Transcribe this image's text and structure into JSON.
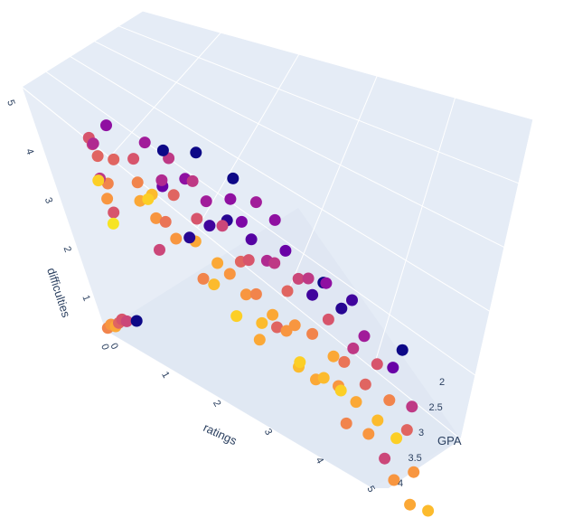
{
  "chart_data": {
    "type": "scatter3d",
    "title": "",
    "x_axis": {
      "title": "ratings",
      "ticks": [
        "0",
        "1",
        "2",
        "3",
        "4",
        "5"
      ],
      "range": [
        0,
        5
      ]
    },
    "y_axis": {
      "title": "GPA",
      "ticks": [
        "2",
        "2.5",
        "3",
        "3.5",
        "4"
      ],
      "range": [
        2,
        4
      ]
    },
    "z_axis": {
      "title": "difficulties",
      "ticks": [
        "0",
        "1",
        "2",
        "3",
        "4",
        "5"
      ],
      "range": [
        0,
        5
      ]
    },
    "colorscale": [
      "#0d0887",
      "#46039f",
      "#7201a8",
      "#9c179e",
      "#bd3786",
      "#d8576b",
      "#ed7953",
      "#fb9f3a",
      "#fdca26",
      "#f0f921"
    ],
    "background_color": "#e5ecf6",
    "grid_color": "#ffffff",
    "points": [
      {
        "r": 0.9,
        "d": 4.7,
        "g": 2.6,
        "c": 0.55
      },
      {
        "r": 0.9,
        "d": 4.5,
        "g": 2.5,
        "c": 0.5
      },
      {
        "r": 0.9,
        "d": 4.2,
        "g": 2.4,
        "c": 0.6
      },
      {
        "r": 0.9,
        "d": 4.0,
        "g": 2.7,
        "c": 0.45
      },
      {
        "r": 0.9,
        "d": 3.6,
        "g": 2.3,
        "c": 0.7
      },
      {
        "r": 0.9,
        "d": 3.2,
        "g": 2.5,
        "c": 0.55
      },
      {
        "r": 1.0,
        "d": 4.8,
        "g": 2.8,
        "c": 0.4
      },
      {
        "r": 1.0,
        "d": 3.9,
        "g": 3.0,
        "c": 0.75
      },
      {
        "r": 1.0,
        "d": 4.4,
        "g": 3.2,
        "c": 0.9
      },
      {
        "r": 1.0,
        "d": 3.5,
        "g": 3.1,
        "c": 0.95
      },
      {
        "r": 1.1,
        "d": 4.1,
        "g": 2.2,
        "c": 0.6
      },
      {
        "r": 1.1,
        "d": 4.6,
        "g": 2.0,
        "c": 0.3
      },
      {
        "r": 1.5,
        "d": 4.5,
        "g": 2.4,
        "c": 0.55
      },
      {
        "r": 1.5,
        "d": 4.2,
        "g": 2.6,
        "c": 0.7
      },
      {
        "r": 1.5,
        "d": 4.0,
        "g": 2.8,
        "c": 0.8
      },
      {
        "r": 1.6,
        "d": 3.8,
        "g": 2.3,
        "c": 0.85
      },
      {
        "r": 1.6,
        "d": 3.5,
        "g": 2.5,
        "c": 0.75
      },
      {
        "r": 1.6,
        "d": 3.2,
        "g": 2.9,
        "c": 0.5
      },
      {
        "r": 1.7,
        "d": 4.7,
        "g": 2.1,
        "c": 0.35
      },
      {
        "r": 1.7,
        "d": 4.3,
        "g": 3.0,
        "c": 0.9
      },
      {
        "r": 1.8,
        "d": 4.0,
        "g": 2.2,
        "c": 0.2
      },
      {
        "r": 1.8,
        "d": 3.7,
        "g": 2.7,
        "c": 0.65
      },
      {
        "r": 1.9,
        "d": 4.4,
        "g": 2.5,
        "c": 0.4
      },
      {
        "r": 2.0,
        "d": 4.8,
        "g": 2.2,
        "c": 0.0
      },
      {
        "r": 2.0,
        "d": 4.5,
        "g": 2.0,
        "c": 0.45
      },
      {
        "r": 2.0,
        "d": 4.1,
        "g": 2.4,
        "c": 0.6
      },
      {
        "r": 2.0,
        "d": 3.8,
        "g": 3.1,
        "c": 0.75
      },
      {
        "r": 2.1,
        "d": 3.5,
        "g": 2.6,
        "c": 0.05
      },
      {
        "r": 2.1,
        "d": 3.2,
        "g": 2.3,
        "c": 0.8
      },
      {
        "r": 2.2,
        "d": 3.0,
        "g": 2.9,
        "c": 0.7
      },
      {
        "r": 2.2,
        "d": 4.3,
        "g": 2.1,
        "c": 0.3
      },
      {
        "r": 2.3,
        "d": 3.9,
        "g": 2.5,
        "c": 0.55
      },
      {
        "r": 2.3,
        "d": 2.8,
        "g": 2.7,
        "c": 0.85
      },
      {
        "r": 2.4,
        "d": 3.6,
        "g": 2.2,
        "c": 0.1
      },
      {
        "r": 2.4,
        "d": 4.6,
        "g": 2.4,
        "c": 0.45
      },
      {
        "r": 2.5,
        "d": 4.9,
        "g": 2.0,
        "c": 0.0
      },
      {
        "r": 2.5,
        "d": 4.2,
        "g": 2.3,
        "c": 0.35
      },
      {
        "r": 2.5,
        "d": 3.4,
        "g": 2.8,
        "c": 0.8
      },
      {
        "r": 2.6,
        "d": 3.1,
        "g": 2.6,
        "c": 0.75
      },
      {
        "r": 2.6,
        "d": 2.6,
        "g": 3.0,
        "c": 0.9
      },
      {
        "r": 2.7,
        "d": 3.8,
        "g": 2.1,
        "c": 0.05
      },
      {
        "r": 2.7,
        "d": 4.0,
        "g": 2.5,
        "c": 0.5
      },
      {
        "r": 2.8,
        "d": 3.3,
        "g": 2.4,
        "c": 0.6
      },
      {
        "r": 2.8,
        "d": 2.9,
        "g": 2.7,
        "c": 0.75
      },
      {
        "r": 2.9,
        "d": 4.4,
        "g": 2.2,
        "c": 0.3
      },
      {
        "r": 2.9,
        "d": 2.4,
        "g": 3.1,
        "c": 0.8
      },
      {
        "r": 3.0,
        "d": 4.7,
        "g": 2.0,
        "c": 0.0
      },
      {
        "r": 3.0,
        "d": 4.1,
        "g": 2.3,
        "c": 0.25
      },
      {
        "r": 3.0,
        "d": 3.6,
        "g": 2.6,
        "c": 0.55
      },
      {
        "r": 3.0,
        "d": 3.1,
        "g": 2.8,
        "c": 0.7
      },
      {
        "r": 3.0,
        "d": 2.7,
        "g": 3.0,
        "c": 0.85
      },
      {
        "r": 3.1,
        "d": 2.3,
        "g": 2.5,
        "c": 0.6
      },
      {
        "r": 3.1,
        "d": 3.9,
        "g": 2.4,
        "c": 0.15
      },
      {
        "r": 3.2,
        "d": 3.4,
        "g": 2.2,
        "c": 0.4
      },
      {
        "r": 3.2,
        "d": 2.9,
        "g": 2.9,
        "c": 0.8
      },
      {
        "r": 3.3,
        "d": 2.5,
        "g": 2.7,
        "c": 0.75
      },
      {
        "r": 3.3,
        "d": 4.5,
        "g": 2.1,
        "c": 0.35
      },
      {
        "r": 3.4,
        "d": 3.7,
        "g": 2.5,
        "c": 0.45
      },
      {
        "r": 3.4,
        "d": 2.1,
        "g": 3.0,
        "c": 0.85
      },
      {
        "r": 3.5,
        "d": 4.2,
        "g": 2.0,
        "c": 0.3
      },
      {
        "r": 3.5,
        "d": 3.3,
        "g": 2.6,
        "c": 0.6
      },
      {
        "r": 3.5,
        "d": 2.8,
        "g": 2.8,
        "c": 0.75
      },
      {
        "r": 3.5,
        "d": 2.4,
        "g": 3.2,
        "c": 0.9
      },
      {
        "r": 3.6,
        "d": 3.9,
        "g": 2.3,
        "c": 0.2
      },
      {
        "r": 3.6,
        "d": 1.9,
        "g": 2.9,
        "c": 0.8
      },
      {
        "r": 3.7,
        "d": 3.5,
        "g": 2.4,
        "c": 0.5
      },
      {
        "r": 3.7,
        "d": 2.6,
        "g": 2.6,
        "c": 0.7
      },
      {
        "r": 3.8,
        "d": 3.1,
        "g": 2.2,
        "c": 0.1
      },
      {
        "r": 3.8,
        "d": 2.2,
        "g": 3.1,
        "c": 0.85
      },
      {
        "r": 3.9,
        "d": 3.7,
        "g": 2.5,
        "c": 0.45
      },
      {
        "r": 3.9,
        "d": 1.8,
        "g": 2.7,
        "c": 0.75
      },
      {
        "r": 4.0,
        "d": 3.3,
        "g": 2.0,
        "c": 0.0
      },
      {
        "r": 4.0,
        "d": 2.9,
        "g": 2.4,
        "c": 0.55
      },
      {
        "r": 4.0,
        "d": 2.5,
        "g": 2.8,
        "c": 0.8
      },
      {
        "r": 4.0,
        "d": 2.0,
        "g": 3.0,
        "c": 0.9
      },
      {
        "r": 4.0,
        "d": 1.6,
        "g": 3.3,
        "c": 0.7
      },
      {
        "r": 4.1,
        "d": 3.5,
        "g": 2.2,
        "c": 0.3
      },
      {
        "r": 4.1,
        "d": 2.3,
        "g": 2.6,
        "c": 0.65
      },
      {
        "r": 4.2,
        "d": 3.0,
        "g": 2.1,
        "c": 0.05
      },
      {
        "r": 4.2,
        "d": 1.9,
        "g": 3.0,
        "c": 0.8
      },
      {
        "r": 4.3,
        "d": 2.6,
        "g": 2.5,
        "c": 0.45
      },
      {
        "r": 4.3,
        "d": 1.5,
        "g": 3.2,
        "c": 0.75
      },
      {
        "r": 4.4,
        "d": 3.2,
        "g": 2.0,
        "c": 0.1
      },
      {
        "r": 4.4,
        "d": 2.2,
        "g": 2.8,
        "c": 0.6
      },
      {
        "r": 4.5,
        "d": 2.8,
        "g": 2.3,
        "c": 0.35
      },
      {
        "r": 4.5,
        "d": 1.8,
        "g": 3.1,
        "c": 0.85
      },
      {
        "r": 4.5,
        "d": 1.3,
        "g": 3.4,
        "c": 0.5
      },
      {
        "r": 4.6,
        "d": 2.4,
        "g": 2.4,
        "c": 0.55
      },
      {
        "r": 4.6,
        "d": 1.1,
        "g": 3.6,
        "c": 0.75
      },
      {
        "r": 4.7,
        "d": 2.0,
        "g": 2.7,
        "c": 0.7
      },
      {
        "r": 4.7,
        "d": 1.5,
        "g": 3.0,
        "c": 0.9
      },
      {
        "r": 4.8,
        "d": 2.3,
        "g": 2.2,
        "c": 0.2
      },
      {
        "r": 4.8,
        "d": 0.9,
        "g": 3.8,
        "c": 0.8
      },
      {
        "r": 4.9,
        "d": 1.7,
        "g": 2.9,
        "c": 0.6
      },
      {
        "r": 4.9,
        "d": 1.2,
        "g": 3.3,
        "c": 0.75
      },
      {
        "r": 5.0,
        "d": 2.6,
        "g": 2.0,
        "c": 0.0
      },
      {
        "r": 5.0,
        "d": 0.6,
        "g": 3.9,
        "c": 0.85
      },
      {
        "r": 5.0,
        "d": 1.9,
        "g": 2.5,
        "c": 0.45
      },
      {
        "r": 0.1,
        "d": 0.3,
        "g": 2.2,
        "c": 0.7
      },
      {
        "r": 0.2,
        "d": 0.5,
        "g": 2.3,
        "c": 0.75
      },
      {
        "r": 0.3,
        "d": 0.6,
        "g": 2.4,
        "c": 0.8
      },
      {
        "r": 0.4,
        "d": 0.8,
        "g": 2.5,
        "c": 0.6
      },
      {
        "r": 0.5,
        "d": 1.0,
        "g": 2.6,
        "c": 0.55
      },
      {
        "r": 0.6,
        "d": 1.1,
        "g": 2.7,
        "c": 0.5
      },
      {
        "r": 0.8,
        "d": 1.3,
        "g": 2.8,
        "c": 0.0
      }
    ]
  }
}
